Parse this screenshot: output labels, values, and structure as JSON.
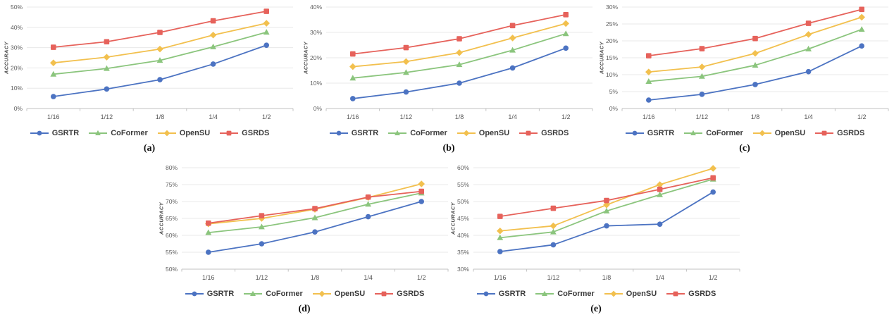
{
  "figure": {
    "y_axis_title": "ACCURACY",
    "captions": [
      "(a)",
      "(b)",
      "(c)",
      "(d)",
      "(e)"
    ]
  },
  "palette": {
    "grid": "#e8e8e8",
    "axis": "#c2c2c2",
    "tick_text": "#5f5f5f",
    "legend_text": "#3b3b3b"
  },
  "series_styles": [
    {
      "name": "GSRTR",
      "color": "#4c73c2",
      "marker": "circle"
    },
    {
      "name": "CoFormer",
      "color": "#8bc57d",
      "marker": "triangle"
    },
    {
      "name": "OpenSU",
      "color": "#f2c04e",
      "marker": "diamond"
    },
    {
      "name": "GSRDS",
      "color": "#e6625b",
      "marker": "square"
    }
  ],
  "chart_data": [
    {
      "type": "line",
      "caption": "(a)",
      "ylabel": "ACCURACY",
      "categories": [
        "1/16",
        "1/12",
        "1/8",
        "1/4",
        "1/2"
      ],
      "ylim": [
        0,
        50
      ],
      "ystep": 10,
      "yticks": [
        "0%",
        "10%",
        "20%",
        "30%",
        "40%",
        "50%"
      ],
      "grid": true,
      "legend_position": "bottom",
      "series": [
        {
          "name": "GSRTR",
          "values": [
            5.9,
            9.6,
            14.2,
            21.9,
            31.2
          ]
        },
        {
          "name": "CoFormer",
          "values": [
            16.9,
            19.7,
            23.7,
            30.4,
            37.6
          ]
        },
        {
          "name": "OpenSU",
          "values": [
            22.5,
            25.3,
            29.3,
            36.2,
            42.0
          ]
        },
        {
          "name": "GSRDS",
          "values": [
            30.2,
            32.9,
            37.5,
            43.2,
            47.9
          ]
        }
      ]
    },
    {
      "type": "line",
      "caption": "(b)",
      "ylabel": "ACCURACY",
      "categories": [
        "1/16",
        "1/12",
        "1/8",
        "1/4",
        "1/2"
      ],
      "ylim": [
        0,
        40
      ],
      "ystep": 10,
      "yticks": [
        "0%",
        "10%",
        "20%",
        "30%",
        "40%"
      ],
      "grid": true,
      "legend_position": "bottom",
      "series": [
        {
          "name": "GSRTR",
          "values": [
            3.9,
            6.5,
            10.0,
            16.0,
            23.8
          ]
        },
        {
          "name": "CoFormer",
          "values": [
            12.0,
            14.2,
            17.3,
            23.0,
            29.5
          ]
        },
        {
          "name": "OpenSU",
          "values": [
            16.5,
            18.5,
            22.0,
            27.8,
            33.5
          ]
        },
        {
          "name": "GSRDS",
          "values": [
            21.5,
            24.0,
            27.5,
            32.7,
            37.0
          ]
        }
      ]
    },
    {
      "type": "line",
      "caption": "(c)",
      "ylabel": "ACCURACY",
      "categories": [
        "1/16",
        "1/12",
        "1/8",
        "1/4",
        "1/2"
      ],
      "ylim": [
        0,
        30
      ],
      "ystep": 5,
      "yticks": [
        "0%",
        "5%",
        "10%",
        "15%",
        "20%",
        "25%",
        "30%"
      ],
      "grid": true,
      "legend_position": "bottom",
      "series": [
        {
          "name": "GSRTR",
          "values": [
            2.5,
            4.2,
            7.1,
            10.9,
            18.5
          ]
        },
        {
          "name": "CoFormer",
          "values": [
            8.0,
            9.5,
            12.8,
            17.6,
            23.4
          ]
        },
        {
          "name": "OpenSU",
          "values": [
            10.8,
            12.3,
            16.3,
            21.9,
            27.0
          ]
        },
        {
          "name": "GSRDS",
          "values": [
            15.6,
            17.7,
            20.7,
            25.2,
            29.3
          ]
        }
      ]
    },
    {
      "type": "line",
      "caption": "(d)",
      "ylabel": "ACCURACY",
      "categories": [
        "1/16",
        "1/12",
        "1/8",
        "1/4",
        "1/2"
      ],
      "ylim": [
        50,
        80
      ],
      "ystep": 5,
      "yticks": [
        "50%",
        "55%",
        "60%",
        "65%",
        "70%",
        "75%",
        "80%"
      ],
      "grid": true,
      "legend_position": "bottom",
      "series": [
        {
          "name": "GSRTR",
          "values": [
            55.0,
            57.5,
            61.0,
            65.5,
            70.0
          ]
        },
        {
          "name": "CoFormer",
          "values": [
            60.8,
            62.5,
            65.2,
            69.2,
            72.5
          ]
        },
        {
          "name": "OpenSU",
          "values": [
            63.4,
            65.0,
            67.7,
            71.2,
            75.2
          ]
        },
        {
          "name": "GSRDS",
          "values": [
            63.6,
            65.8,
            67.9,
            71.3,
            73.0
          ]
        }
      ]
    },
    {
      "type": "line",
      "caption": "(e)",
      "ylabel": "ACCURACY",
      "categories": [
        "1/16",
        "1/12",
        "1/8",
        "1/4",
        "1/2"
      ],
      "ylim": [
        30,
        60
      ],
      "ystep": 5,
      "yticks": [
        "30%",
        "35%",
        "40%",
        "45%",
        "50%",
        "55%",
        "60%"
      ],
      "grid": true,
      "legend_position": "bottom",
      "series": [
        {
          "name": "GSRTR",
          "values": [
            35.2,
            37.2,
            42.8,
            43.3,
            52.8
          ]
        },
        {
          "name": "CoFormer",
          "values": [
            39.3,
            41.0,
            47.2,
            52.0,
            56.6
          ]
        },
        {
          "name": "OpenSU",
          "values": [
            41.3,
            42.8,
            49.0,
            55.0,
            59.8
          ]
        },
        {
          "name": "GSRDS",
          "values": [
            45.6,
            48.0,
            50.3,
            53.6,
            57.0
          ]
        }
      ]
    }
  ]
}
